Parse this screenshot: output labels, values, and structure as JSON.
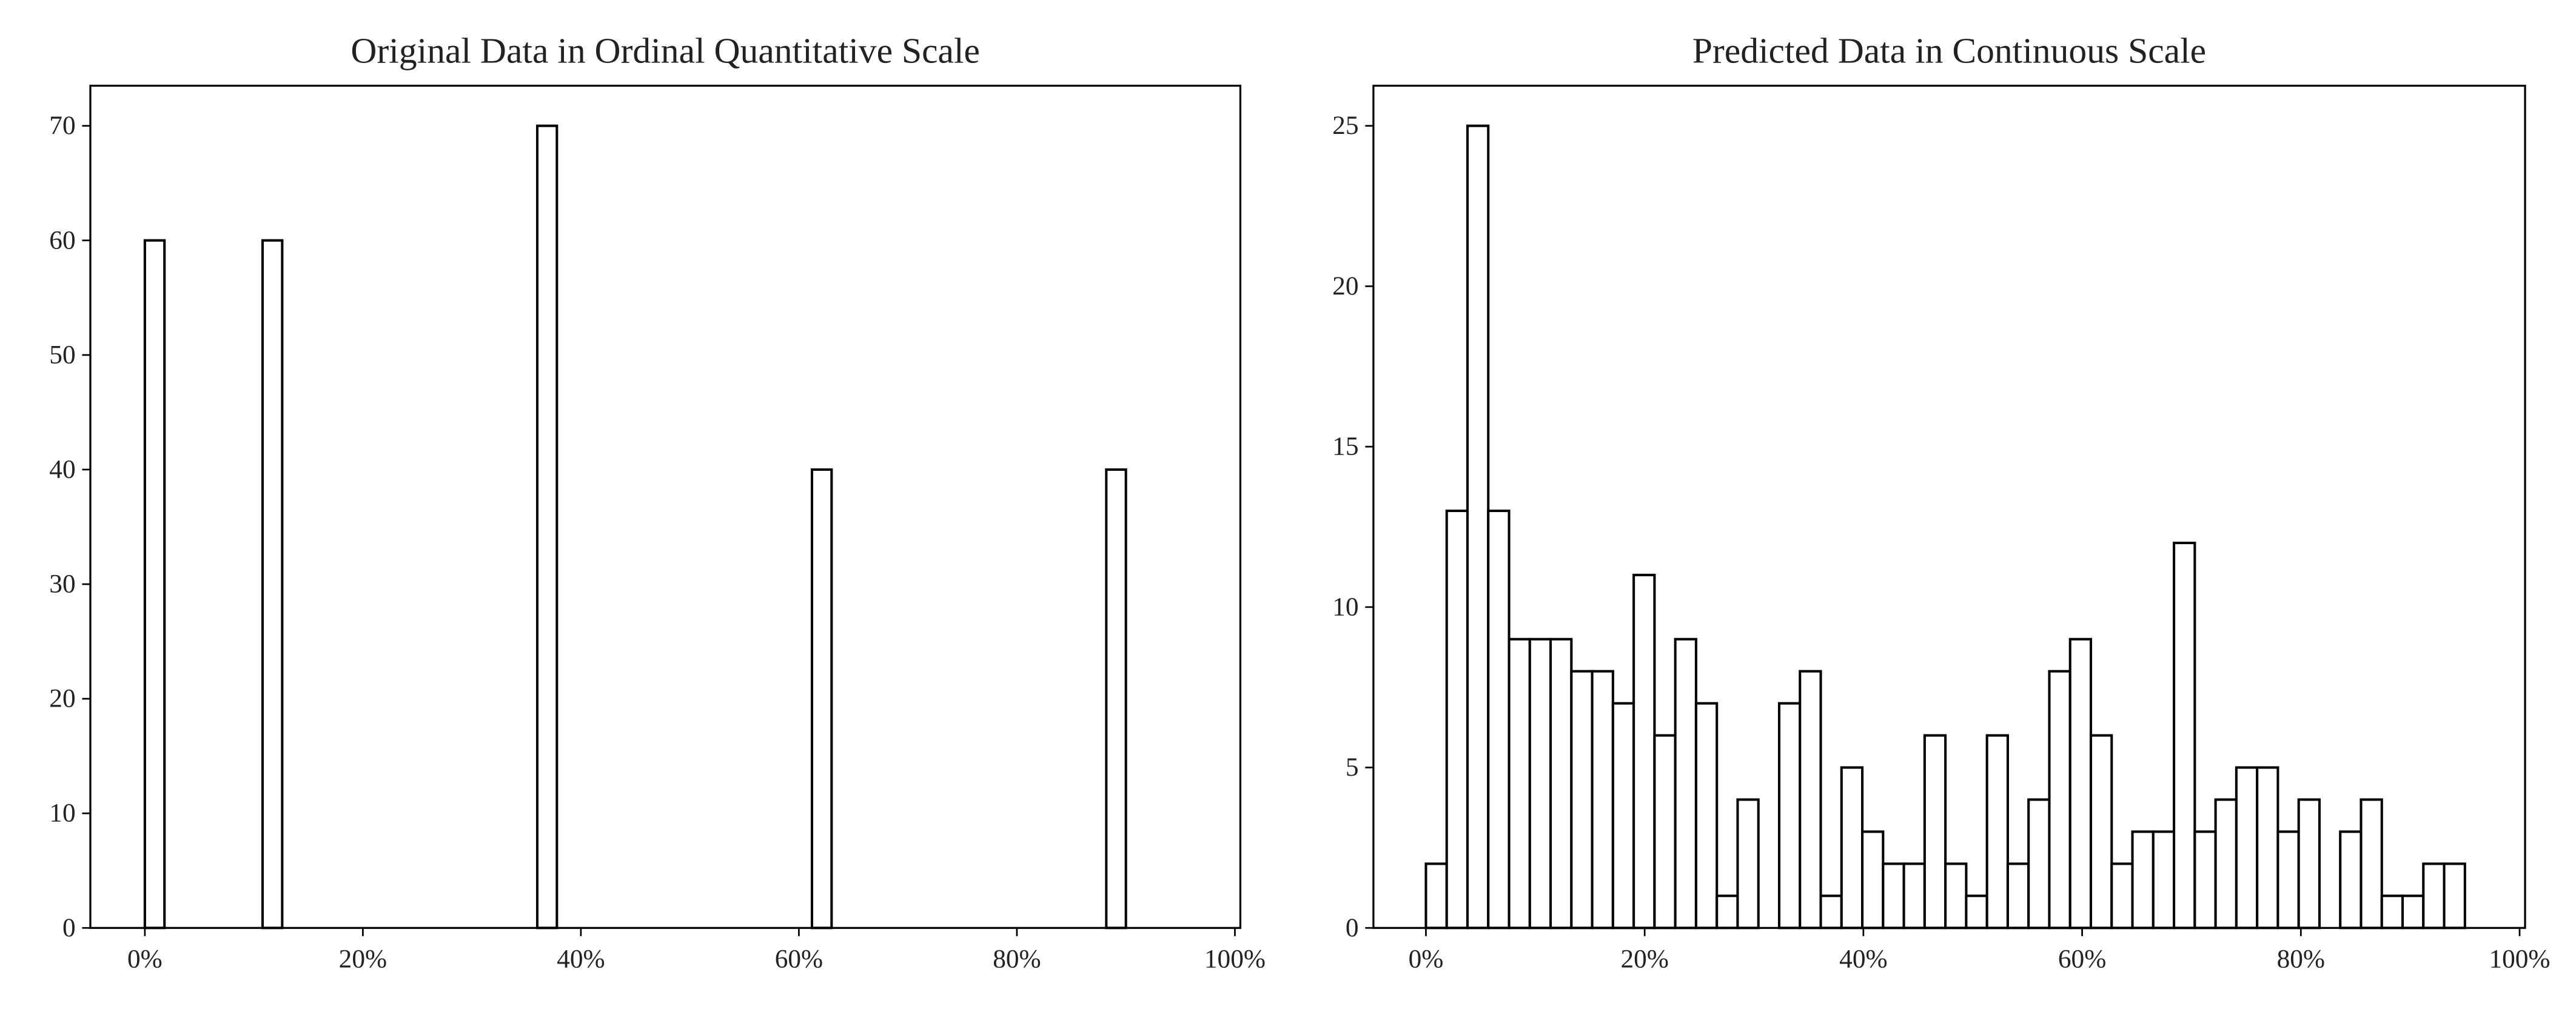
{
  "chart_data": [
    {
      "type": "histogram",
      "title": "Original Data in Ordinal Quantitative Scale",
      "bins": [
        0,
        1.8,
        3.6,
        5.4,
        7.2,
        9,
        10.8,
        12.6,
        14.4,
        16.2,
        18,
        19.8,
        21.6,
        23.4,
        25.2,
        27,
        28.8,
        30.6,
        32.4,
        34.2,
        36,
        37.8,
        39.6,
        41.4,
        43.2,
        45,
        46.8,
        48.6,
        50.4,
        52.2,
        54,
        55.8,
        57.6,
        59.4,
        61.2,
        63,
        64.8,
        66.6,
        68.4,
        70.2,
        72,
        73.8,
        75.6,
        77.4,
        79.2,
        81,
        82.8,
        84.6,
        86.4,
        88.2,
        90
      ],
      "values": [
        60,
        0,
        0,
        0,
        0,
        0,
        60,
        0,
        0,
        0,
        0,
        0,
        0,
        0,
        0,
        0,
        0,
        0,
        0,
        0,
        70,
        0,
        0,
        0,
        0,
        0,
        0,
        0,
        0,
        0,
        0,
        0,
        0,
        0,
        40,
        0,
        0,
        0,
        0,
        0,
        0,
        0,
        0,
        0,
        0,
        0,
        0,
        0,
        0,
        40
      ],
      "color": "#ffffff",
      "edgecolor": "#000000",
      "xlim": [
        -5,
        100.5
      ],
      "xticks": [
        {
          "value": 0,
          "label": "0%"
        },
        {
          "value": 20,
          "label": "20%"
        },
        {
          "value": 40,
          "label": "40%"
        },
        {
          "value": 60,
          "label": "60%"
        },
        {
          "value": 80,
          "label": "80%"
        },
        {
          "value": 100,
          "label": "100%"
        }
      ],
      "ylim": [
        0,
        73.5
      ],
      "yticks": [
        0,
        10,
        20,
        30,
        40,
        50,
        60,
        70
      ],
      "grid": false
    },
    {
      "type": "histogram",
      "title": "Predicted Data in Continuous Scale",
      "bins": [
        0,
        1.9,
        3.8,
        5.7,
        7.6,
        9.5,
        11.4,
        13.3,
        15.2,
        17.1,
        19,
        20.9,
        22.8,
        24.7,
        26.6,
        28.5,
        30.4,
        32.3,
        34.2,
        36.1,
        38,
        39.9,
        41.8,
        43.7,
        45.6,
        47.5,
        49.4,
        51.3,
        53.2,
        55.1,
        57,
        58.9,
        60.8,
        62.7,
        64.6,
        66.5,
        68.4,
        70.3,
        72.2,
        74.1,
        76,
        77.9,
        79.8,
        81.7,
        83.6,
        85.5,
        87.4,
        89.3,
        91.2,
        93.1,
        95
      ],
      "values": [
        2,
        13,
        25,
        13,
        9,
        9,
        9,
        8,
        8,
        7,
        11,
        6,
        9,
        7,
        1,
        4,
        0,
        7,
        8,
        1,
        5,
        3,
        2,
        2,
        6,
        2,
        1,
        6,
        2,
        4,
        8,
        9,
        6,
        2,
        3,
        3,
        12,
        3,
        4,
        5,
        5,
        3,
        4,
        0,
        3,
        4,
        1,
        1,
        2,
        2
      ],
      "color": "#ffffff",
      "edgecolor": "#000000",
      "xlim": [
        -4.8,
        100.5
      ],
      "xticks": [
        {
          "value": 0,
          "label": "0%"
        },
        {
          "value": 20,
          "label": "20%"
        },
        {
          "value": 40,
          "label": "40%"
        },
        {
          "value": 60,
          "label": "60%"
        },
        {
          "value": 80,
          "label": "80%"
        },
        {
          "value": 100,
          "label": "100%"
        }
      ],
      "ylim": [
        0,
        26.25
      ],
      "yticks": [
        0,
        5,
        10,
        15,
        20,
        25
      ],
      "grid": false
    }
  ]
}
